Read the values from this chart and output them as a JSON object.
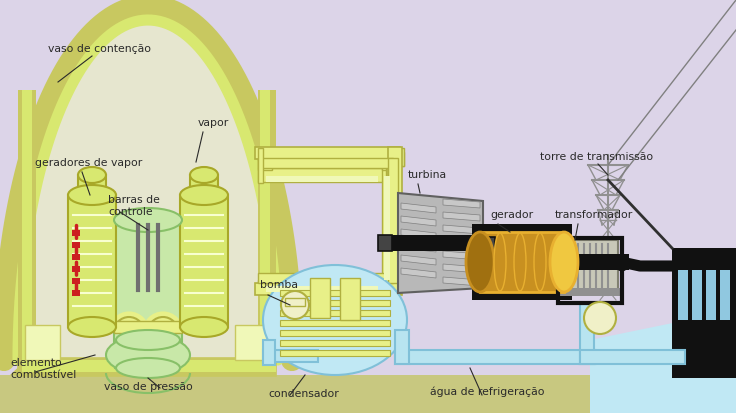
{
  "bg_color": "#dcd4e8",
  "colors": {
    "yg_fill": "#e8f0a0",
    "yg_stroke": "#c8c860",
    "yg_light": "#f0f8b8",
    "steam_gen": "#d8e870",
    "steam_stroke": "#a8a828",
    "reactor_fill": "#c8e8a8",
    "reactor_stroke": "#88c068",
    "pipe_fill": "#e8f088",
    "pipe_stroke": "#b0b040",
    "black": "#111111",
    "gray_turb": "#b8b8b8",
    "gray_med": "#909090",
    "gray_dark": "#606060",
    "gold1": "#e8b030",
    "gold2": "#c89020",
    "gold3": "#f0c840",
    "light_blue": "#b8e4f0",
    "water": "#c0e8f4",
    "water_stroke": "#80c0d8",
    "cream": "#f0f0c8",
    "red": "#cc2020",
    "white": "#ffffff",
    "ground": "#c8c880",
    "building": "#111111",
    "window_blue": "#90c8e0",
    "tower_gray": "#909090"
  },
  "labels": {
    "vaso_contencao": "vaso de contenção",
    "vapor": "vapor",
    "geradores_vapor": "geradores de vapor",
    "barras_controle": "barras de\ncontrole",
    "elemento_combustivel": "elemento\ncombustível",
    "vaso_pressao": "vaso de pressão",
    "bomba": "bomba",
    "turbina": "turbina",
    "gerador": "gerador",
    "transformador": "transformador",
    "torre_transmissao": "torre de transmissão",
    "condensador": "condensador",
    "agua_refrigeracao": "água de refrigeração"
  }
}
